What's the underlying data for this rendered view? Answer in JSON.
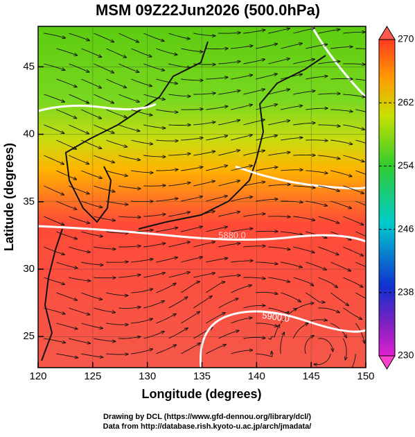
{
  "chart_data": {
    "type": "map",
    "title": "MSM 09Z22Jun2026 (500.0hPa)",
    "x_label": "Longitude (degrees)",
    "y_label": "Latitude  (degrees)",
    "xlim": [
      120,
      150
    ],
    "xticks": [
      120,
      125,
      130,
      135,
      140,
      145,
      150
    ],
    "ylim": [
      22.7,
      48.0
    ],
    "yticks": [
      25,
      30,
      35,
      40,
      45
    ],
    "grid": true,
    "colorbar": {
      "lim": [
        230,
        270
      ],
      "ticks": [
        230,
        238,
        246,
        254,
        262,
        270
      ]
    },
    "contours": [
      {
        "value": 5880,
        "label": "5880.0"
      },
      {
        "value": 5900,
        "label": "5900.0"
      }
    ],
    "footer": [
      "Drawing by DCL (https://www.gfd-dennou.org/library/dcl/)",
      "Data from http://database.rish.kyoto-u.ac.jp/arch/jmadata/"
    ]
  }
}
